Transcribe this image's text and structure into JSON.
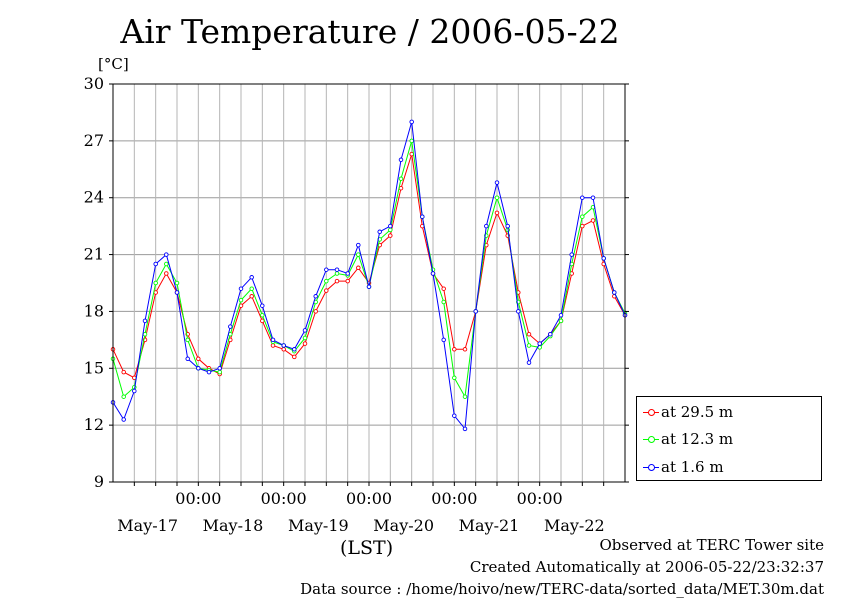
{
  "header": {
    "title": "Air Temperature / 2006-05-22",
    "unit": "[°C]"
  },
  "footer": {
    "xlabel": "(LST)",
    "site": "Observed at TERC Tower site",
    "created": "Created Automatically at 2006-05-22/23:32:37",
    "source": "Data source : /home/hoivo/new/TERC-data/sorted_data/MET.30m.dat"
  },
  "chart_data": {
    "type": "line",
    "title": "Air Temperature / 2006-05-22",
    "ylabel": "[°C]",
    "xlabel": "(LST)",
    "ylim": [
      9,
      30
    ],
    "yticks": [
      "9",
      "12",
      "15",
      "18",
      "21",
      "24",
      "27",
      "30"
    ],
    "xlim_hours": [
      0,
      144
    ],
    "time_ticks": [
      "00:00",
      "00:00",
      "00:00",
      "00:00",
      "00:00"
    ],
    "day_labels": [
      "May-17",
      "May-18",
      "May-19",
      "May-20",
      "May-21",
      "May-22"
    ],
    "grid": true,
    "legend_position": "bottom-right",
    "x_hours": [
      0,
      3,
      6,
      9,
      12,
      15,
      18,
      21,
      24,
      27,
      30,
      33,
      36,
      39,
      42,
      45,
      48,
      51,
      54,
      57,
      60,
      63,
      66,
      69,
      72,
      75,
      78,
      81,
      84,
      87,
      90,
      93,
      96,
      99,
      102,
      105,
      108,
      111,
      114,
      117,
      120,
      123,
      126,
      129,
      132,
      135,
      138,
      141,
      144
    ],
    "series": [
      {
        "name": "at 29.5 m",
        "color": "#ff0000",
        "values": [
          16.0,
          14.8,
          14.5,
          16.5,
          19.0,
          20.0,
          19.0,
          16.8,
          15.5,
          15.0,
          14.7,
          16.5,
          18.3,
          18.8,
          17.5,
          16.2,
          16.0,
          15.6,
          16.3,
          18.0,
          19.1,
          19.6,
          19.6,
          20.3,
          19.5,
          21.5,
          22.0,
          24.5,
          26.3,
          22.5,
          20.0,
          19.2,
          16.0,
          16.0,
          18.0,
          21.5,
          23.2,
          22.0,
          19.0,
          16.8,
          16.3,
          16.8,
          17.5,
          20.0,
          22.5,
          22.8,
          20.5,
          18.8,
          17.8
        ]
      },
      {
        "name": "at 12.3 m",
        "color": "#00ff00",
        "values": [
          15.5,
          13.5,
          14.0,
          16.8,
          19.5,
          20.5,
          19.5,
          16.5,
          15.0,
          14.9,
          14.8,
          16.8,
          18.6,
          19.2,
          17.8,
          16.4,
          16.2,
          15.9,
          16.6,
          18.5,
          19.6,
          20.0,
          19.9,
          21.0,
          19.3,
          21.8,
          22.3,
          25.0,
          27.0,
          23.0,
          20.2,
          18.5,
          14.5,
          13.5,
          18.0,
          22.0,
          24.0,
          22.3,
          18.5,
          16.2,
          16.1,
          16.7,
          17.5,
          20.5,
          23.0,
          23.5,
          20.8,
          19.0,
          17.9
        ]
      },
      {
        "name": "at 1.6 m",
        "color": "#0000ff",
        "values": [
          13.2,
          12.3,
          13.8,
          17.5,
          20.5,
          21.0,
          19.0,
          15.5,
          15.0,
          14.8,
          15.0,
          17.2,
          19.2,
          19.8,
          18.3,
          16.5,
          16.2,
          16.0,
          17.0,
          18.8,
          20.2,
          20.2,
          20.0,
          21.5,
          19.3,
          22.2,
          22.5,
          26.0,
          28.0,
          23.0,
          20.0,
          16.5,
          12.5,
          11.8,
          18.0,
          22.5,
          24.8,
          22.5,
          18.0,
          15.3,
          16.3,
          16.8,
          17.8,
          21.0,
          24.0,
          24.0,
          20.8,
          19.0,
          17.8
        ]
      }
    ]
  }
}
